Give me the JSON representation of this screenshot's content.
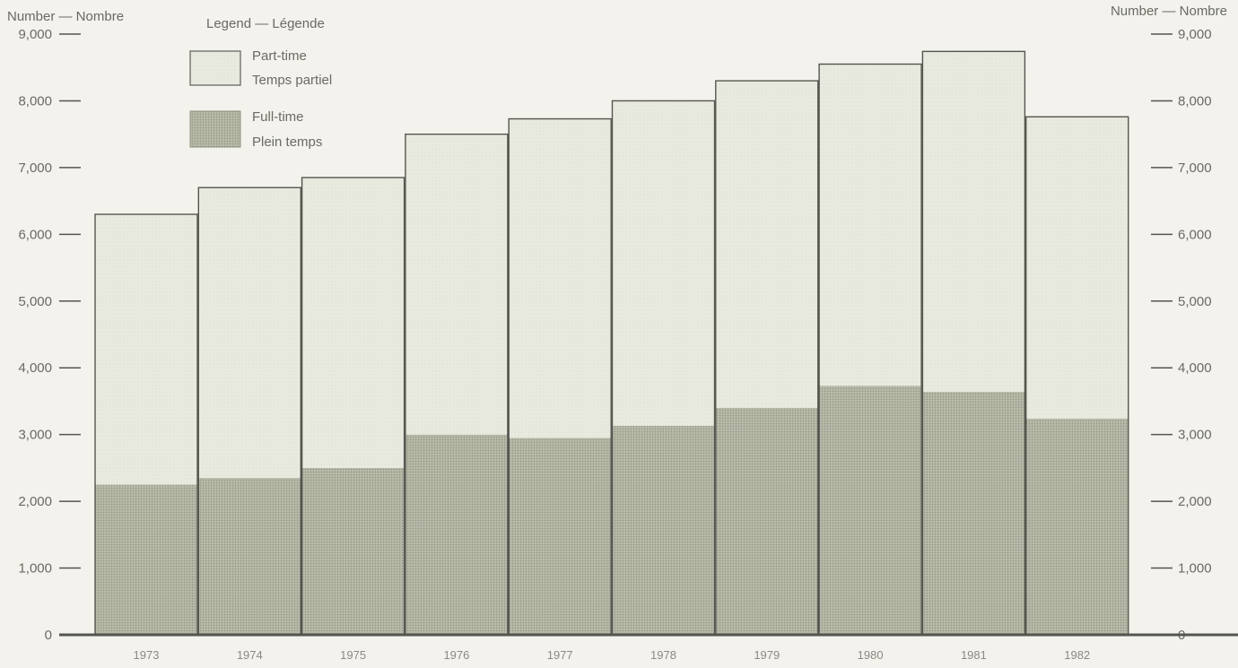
{
  "chart_data": {
    "type": "bar",
    "stacked": true,
    "categories": [
      "1973",
      "1974",
      "1975",
      "1976",
      "1977",
      "1978",
      "1979",
      "1980",
      "1981",
      "1982"
    ],
    "series": [
      {
        "name": "Full-time",
        "name_fr": "Plein temps",
        "color": "#b5b7a6",
        "values": [
          2250,
          2350,
          2500,
          3000,
          2950,
          3130,
          3400,
          3730,
          3640,
          3240
        ]
      },
      {
        "name": "Part-time",
        "name_fr": "Temps partiel",
        "color": "#e7e8dd",
        "values": [
          4050,
          4350,
          4350,
          4500,
          4780,
          4870,
          4900,
          4820,
          5100,
          4520
        ]
      }
    ],
    "totals": [
      6300,
      6700,
      6850,
      7500,
      7730,
      8000,
      8300,
      8550,
      8740,
      7760
    ],
    "ylim": [
      0,
      9000
    ],
    "yticks": [
      0,
      1000,
      2000,
      3000,
      4000,
      5000,
      6000,
      7000,
      8000,
      9000
    ],
    "ytick_labels": [
      "0",
      "1,000",
      "2,000",
      "3,000",
      "4,000",
      "5,000",
      "6,000",
      "7,000",
      "8,000",
      "9,000"
    ],
    "ylabel_left": "Number — Nombre",
    "ylabel_right": "Number — Nombre",
    "legend_title": "Legend — Légende",
    "legend_position": "top-left",
    "grid": false
  },
  "colors": {
    "frame": "#55554f",
    "background": "#f3f2ec"
  }
}
